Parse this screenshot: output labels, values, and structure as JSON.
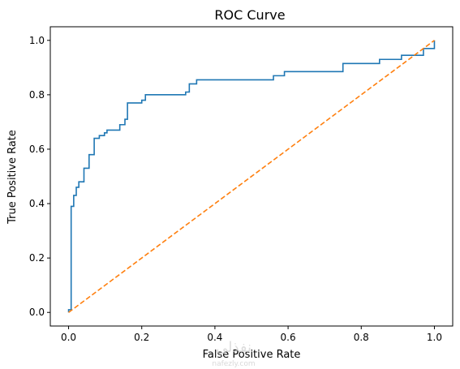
{
  "chart_data": {
    "type": "line",
    "title": "ROC Curve",
    "xlabel": "False Positive Rate",
    "ylabel": "True Positive Rate",
    "xlim": [
      -0.05,
      1.05
    ],
    "ylim": [
      -0.05,
      1.05
    ],
    "xticks": [
      0.0,
      0.2,
      0.4,
      0.6,
      0.8,
      1.0
    ],
    "xtick_labels": [
      "0.0",
      "0.2",
      "0.4",
      "0.6",
      "0.8",
      "1.0"
    ],
    "yticks": [
      0.0,
      0.2,
      0.4,
      0.6,
      0.8,
      1.0
    ],
    "ytick_labels": [
      "0.0",
      "0.2",
      "0.4",
      "0.6",
      "0.8",
      "1.0"
    ],
    "grid": false,
    "legend": "none",
    "series": [
      {
        "color": "#1f77b4",
        "style": "solid",
        "x": [
          0.0,
          0.0,
          0.007,
          0.007,
          0.014,
          0.014,
          0.021,
          0.021,
          0.028,
          0.028,
          0.042,
          0.042,
          0.056,
          0.056,
          0.063,
          0.063,
          0.07,
          0.07,
          0.084,
          0.084,
          0.098,
          0.098,
          0.105,
          0.105,
          0.112,
          0.112,
          0.14,
          0.14,
          0.154,
          0.154,
          0.161,
          0.161,
          0.2,
          0.2,
          0.21,
          0.21,
          0.32,
          0.32,
          0.33,
          0.33,
          0.35,
          0.35,
          0.56,
          0.56,
          0.59,
          0.59,
          0.7,
          0.7,
          0.75,
          0.75,
          0.85,
          0.85,
          0.91,
          0.91,
          0.97,
          0.97,
          1.0,
          1.0
        ],
        "y": [
          0.0,
          0.01,
          0.01,
          0.39,
          0.39,
          0.43,
          0.43,
          0.46,
          0.46,
          0.48,
          0.48,
          0.53,
          0.53,
          0.58,
          0.58,
          0.58,
          0.58,
          0.64,
          0.64,
          0.65,
          0.65,
          0.66,
          0.66,
          0.67,
          0.67,
          0.67,
          0.67,
          0.69,
          0.69,
          0.71,
          0.71,
          0.77,
          0.77,
          0.78,
          0.78,
          0.8,
          0.8,
          0.81,
          0.81,
          0.84,
          0.84,
          0.855,
          0.855,
          0.87,
          0.87,
          0.885,
          0.885,
          0.885,
          0.885,
          0.915,
          0.915,
          0.93,
          0.93,
          0.945,
          0.945,
          0.97,
          0.97,
          1.0
        ]
      },
      {
        "color": "#ff7f0e",
        "style": "dashed",
        "x": [
          0.0,
          1.0
        ],
        "y": [
          0.0,
          1.0
        ]
      }
    ]
  },
  "watermark": {
    "text_primary": "نفذلي",
    "text_secondary": "nafezly.com"
  }
}
